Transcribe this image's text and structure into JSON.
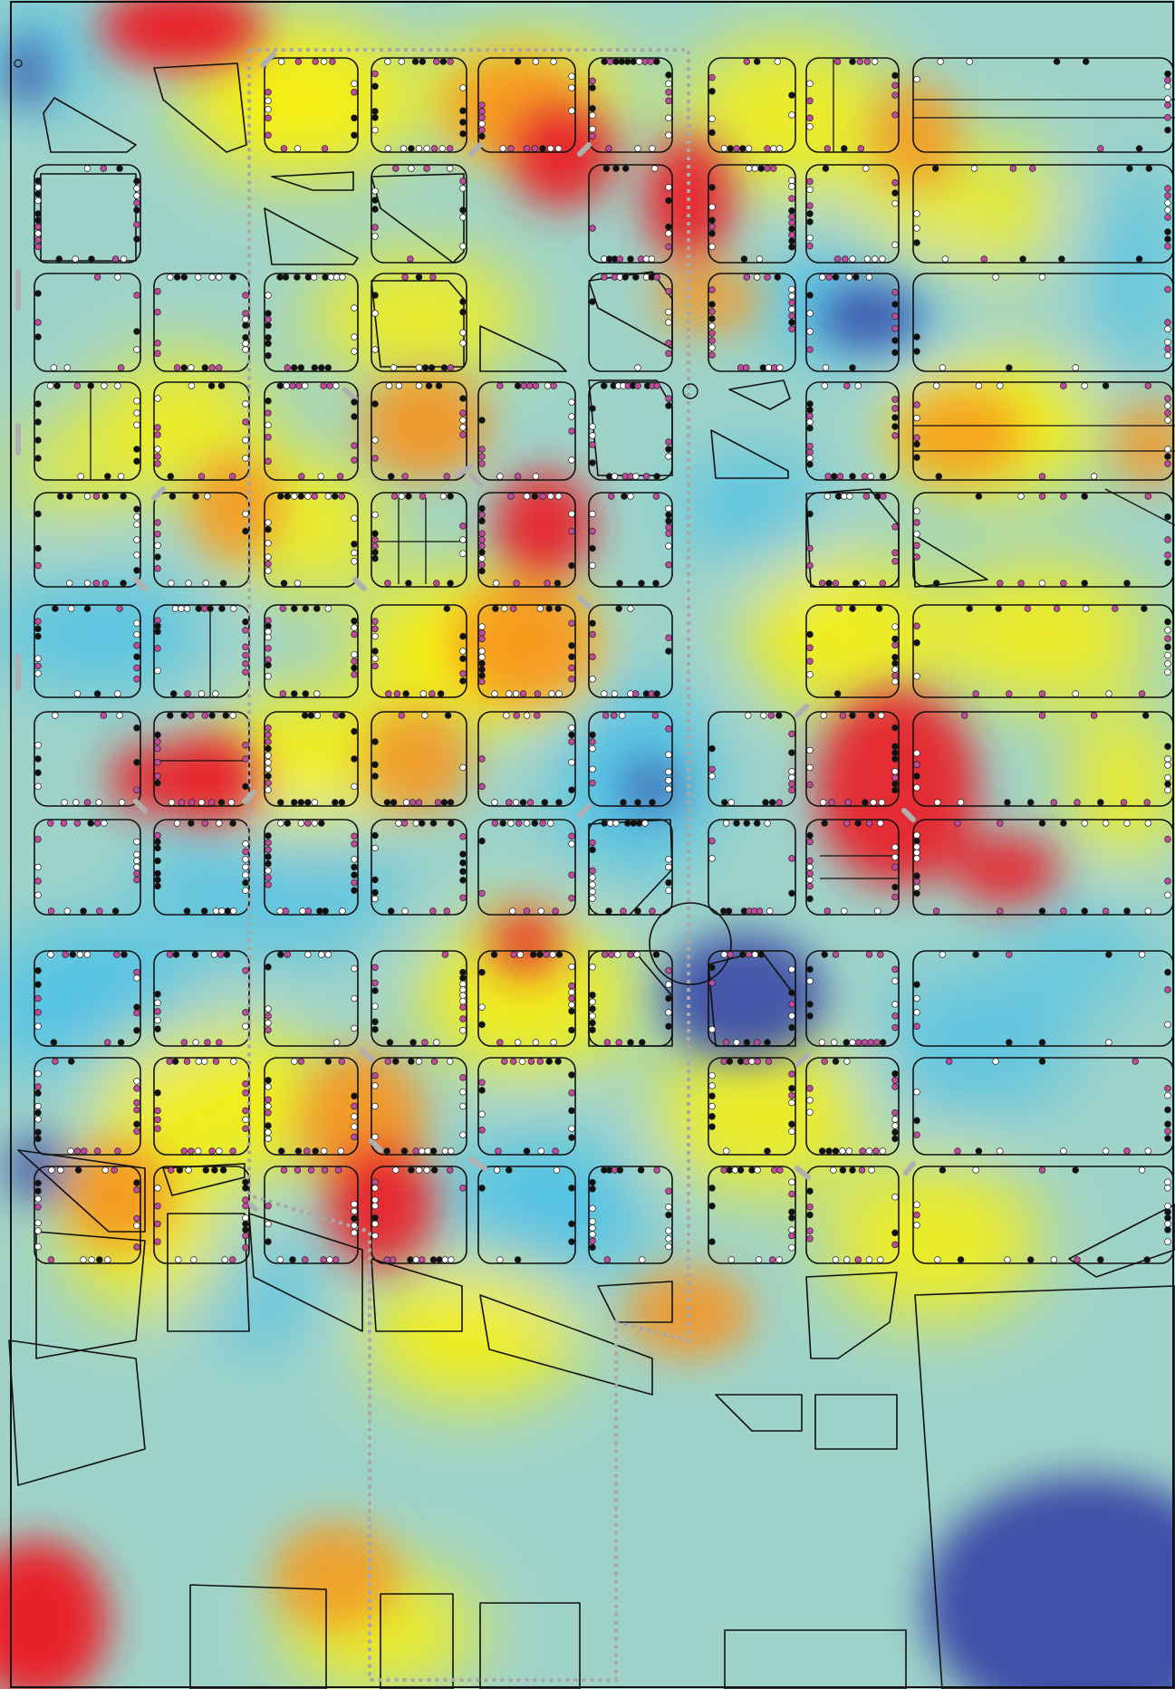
{
  "map": {
    "kind": "heatmap-street-blocks",
    "palette": {
      "low": "#3F4FA8",
      "low_mid": "#46BFEA",
      "mid": "#9ED2C8",
      "mid_high": "#FFF200",
      "high_mid": "#F7941D",
      "high": "#E8212B",
      "block_outline": "#111111",
      "boundary_dash": "#A8A8A8",
      "crosswalk": "#B0B0B0"
    },
    "point_types": [
      {
        "name": "type-a",
        "color": "#FFFFFF"
      },
      {
        "name": "type-b",
        "color": "#C24B9E"
      },
      {
        "name": "type-c",
        "color": "#111111"
      }
    ],
    "hotspot_levels": [
      {
        "label_key": "northwest-block-top",
        "level": "high"
      },
      {
        "label_key": "north-center-intersection",
        "level": "high"
      },
      {
        "label_key": "center-intersection",
        "level": "high"
      },
      {
        "label_key": "west-mid-block",
        "level": "high"
      },
      {
        "label_key": "east-mid-block",
        "level": "high"
      },
      {
        "label_key": "southwest-corner",
        "level": "high"
      },
      {
        "label_key": "south-center",
        "level": "high"
      },
      {
        "label_key": "east-cold-block",
        "level": "low"
      },
      {
        "label_key": "roundabout",
        "level": "low"
      },
      {
        "label_key": "southeast-corner",
        "level": "low"
      }
    ]
  }
}
